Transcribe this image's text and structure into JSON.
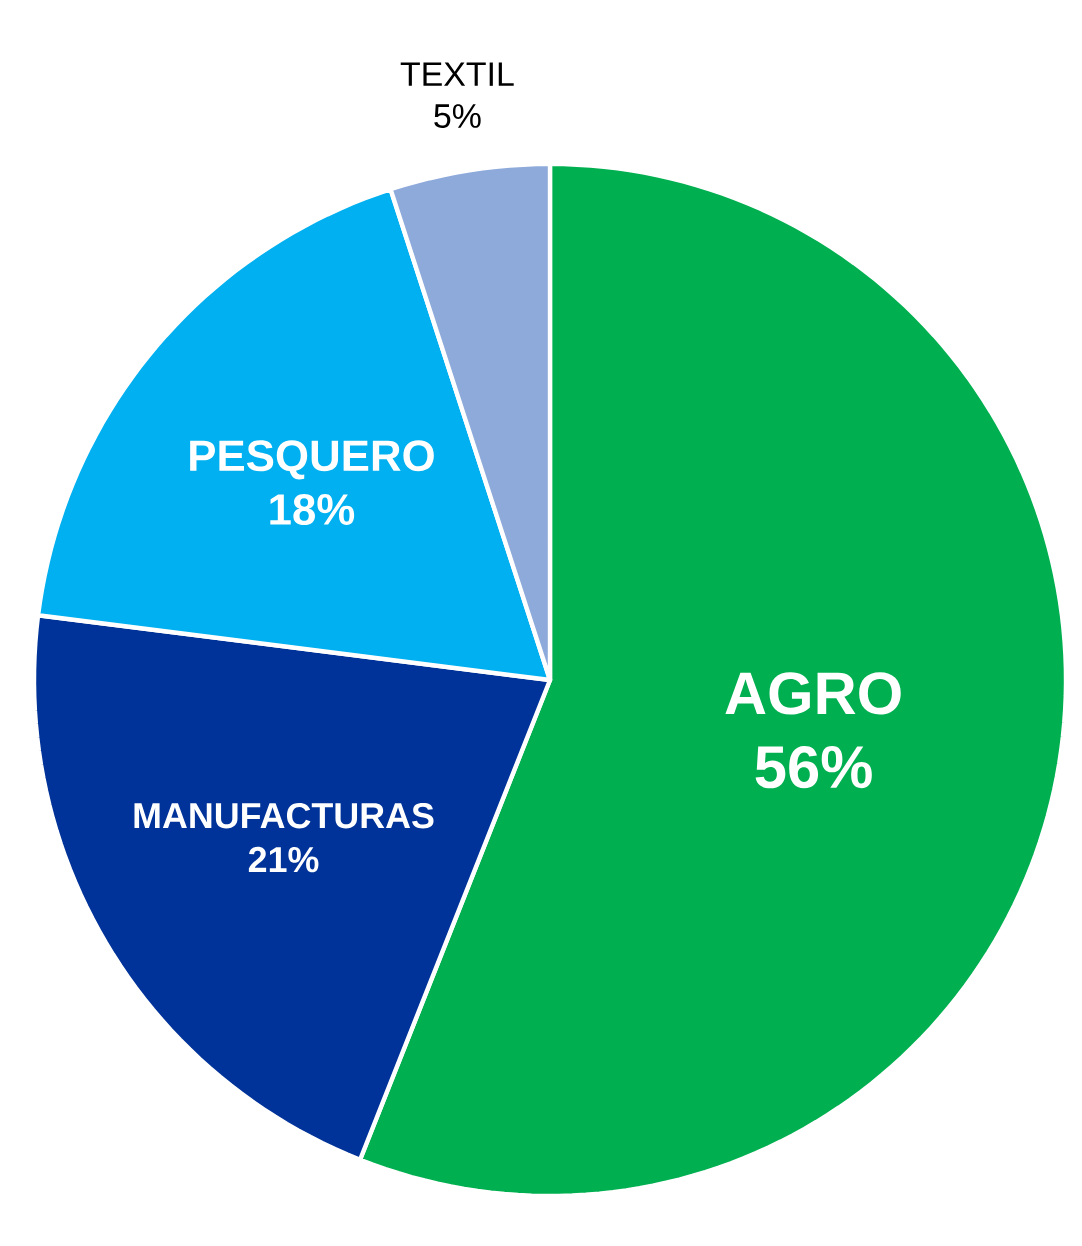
{
  "chart_data": {
    "type": "pie",
    "categories": [
      "AGRO",
      "MANUFACTURAS",
      "PESQUERO",
      "TEXTIL"
    ],
    "values": [
      56,
      21,
      18,
      5
    ],
    "value_labels": [
      "56%",
      "21%",
      "18%",
      "5%"
    ],
    "colors": [
      "#00b050",
      "#003399",
      "#00b0f0",
      "#8eaadb"
    ]
  }
}
